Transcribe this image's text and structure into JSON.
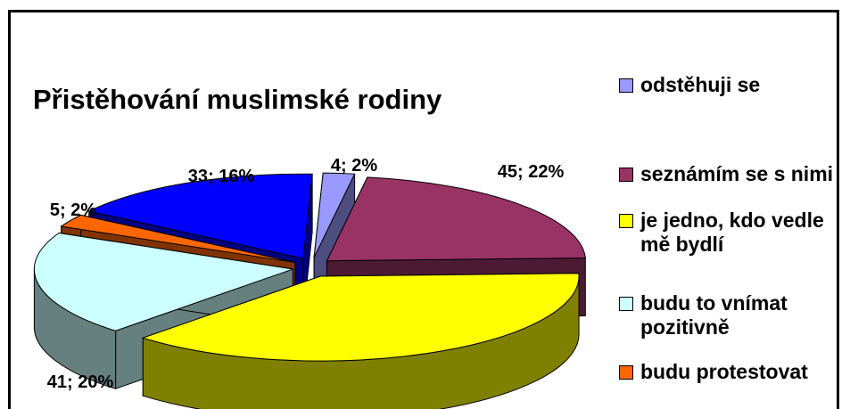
{
  "chart_data": {
    "type": "pie3d",
    "title": "Přistěhování muslimské rodiny",
    "categories": [
      "odstěhuji se",
      "seznámím se s nimi",
      "je jedno, kdo vedle mě bydlí",
      "budu to vnímat pozitivně",
      "budu protestovat",
      null
    ],
    "values": [
      4,
      45,
      77,
      41,
      5,
      33
    ],
    "value_labels": [
      "4; 2%",
      "45; 22%",
      null,
      "41; 20%",
      "5; 2%",
      "33; 16%"
    ],
    "colors": [
      "#9999ff",
      "#993366",
      "#ffff00",
      "#ccffff",
      "#ff6600",
      "#0000ff"
    ],
    "legend": "right"
  }
}
